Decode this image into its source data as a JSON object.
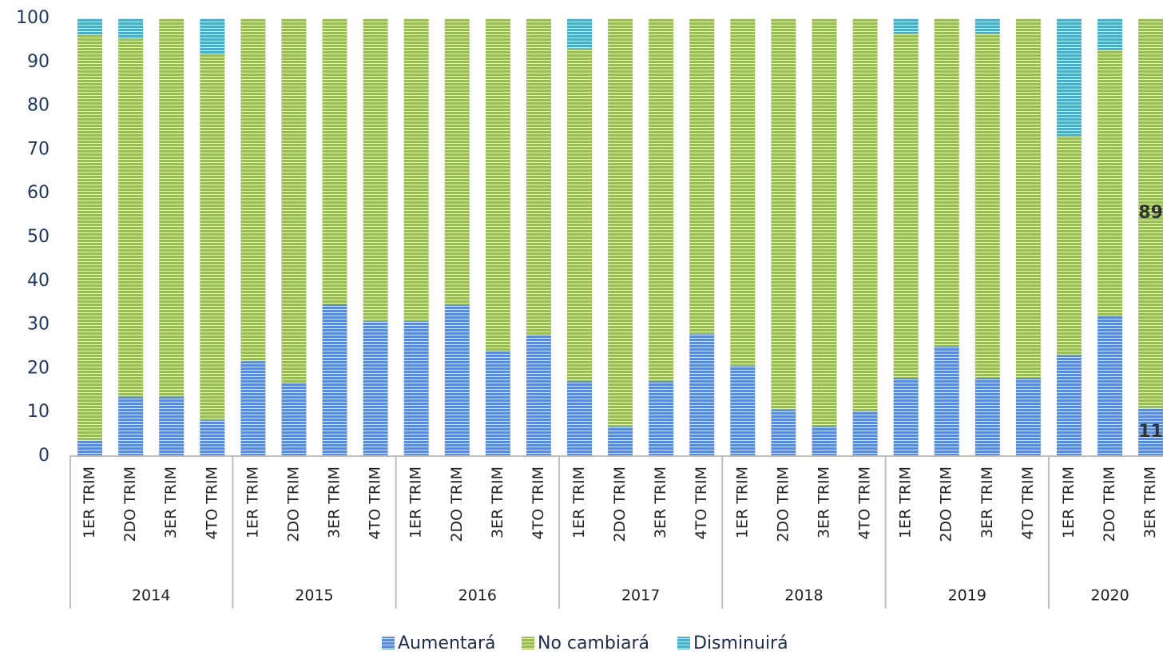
{
  "chart_data": {
    "type": "stacked_bar",
    "groups": [
      {
        "label": "2014",
        "categories": [
          "1ER TRIM",
          "2DO TRIM",
          "3ER TRIM",
          "4TO TRIM"
        ]
      },
      {
        "label": "2015",
        "categories": [
          "1ER TRIM",
          "2DO TRIM",
          "3ER TRIM",
          "4TO TRIM"
        ]
      },
      {
        "label": "2016",
        "categories": [
          "1ER TRIM",
          "2DO TRIM",
          "3ER TRIM",
          "4TO TRIM"
        ]
      },
      {
        "label": "2017",
        "categories": [
          "1ER TRIM",
          "2DO TRIM",
          "3ER TRIM",
          "4TO TRIM"
        ]
      },
      {
        "label": "2018",
        "categories": [
          "1ER TRIM",
          "2DO TRIM",
          "3ER TRIM",
          "4TO TRIM"
        ]
      },
      {
        "label": "2019",
        "categories": [
          "1ER TRIM",
          "2DO TRIM",
          "3ER TRIM",
          "4TO TRIM"
        ]
      },
      {
        "label": "2020",
        "categories": [
          "1ER TRIM",
          "2DO TRIM",
          "3ER TRIM"
        ]
      }
    ],
    "series": [
      {
        "name": "Aumentará",
        "color": "#5b8bd6",
        "values": [
          3.7,
          13.6,
          13.6,
          8.2,
          21.7,
          16.7,
          34.7,
          30.8,
          30.8,
          34.6,
          24,
          27.6,
          17.2,
          6.8,
          17.2,
          27.9,
          20.6,
          10.7,
          6.9,
          10.3,
          17.9,
          25,
          17.9,
          17.9,
          23.1,
          32.1,
          11
        ],
        "value_labels": [
          null,
          null,
          null,
          null,
          null,
          null,
          null,
          null,
          null,
          null,
          null,
          null,
          null,
          null,
          null,
          null,
          null,
          null,
          null,
          null,
          null,
          null,
          null,
          null,
          null,
          null,
          "11"
        ]
      },
      {
        "name": "No cambiará",
        "color": "#9bbb59",
        "values": [
          92.6,
          81.8,
          86.4,
          83.6,
          78.3,
          83.3,
          65.3,
          69.2,
          69.2,
          65.4,
          76,
          72.4,
          75.9,
          93.2,
          82.8,
          72.1,
          79.4,
          89.3,
          93.1,
          89.7,
          78.6,
          75,
          78.6,
          82.1,
          50,
          60.7,
          89
        ],
        "value_labels": [
          null,
          null,
          null,
          null,
          null,
          null,
          null,
          null,
          null,
          null,
          null,
          null,
          null,
          null,
          null,
          null,
          null,
          null,
          null,
          null,
          null,
          null,
          null,
          null,
          null,
          null,
          "89"
        ]
      },
      {
        "name": "Disminuirá",
        "color": "#4bacc6",
        "values": [
          3.7,
          4.6,
          0,
          8.2,
          0,
          0,
          0,
          0,
          0,
          0,
          0,
          0,
          6.9,
          0,
          0,
          0,
          0,
          0,
          0,
          0,
          3.5,
          0,
          3.5,
          0,
          26.9,
          7.2,
          0
        ]
      }
    ],
    "ylim": [
      0,
      100
    ],
    "yticks": [
      0,
      10,
      20,
      30,
      40,
      50,
      60,
      70,
      80,
      90,
      100
    ],
    "legend": "bottom"
  }
}
